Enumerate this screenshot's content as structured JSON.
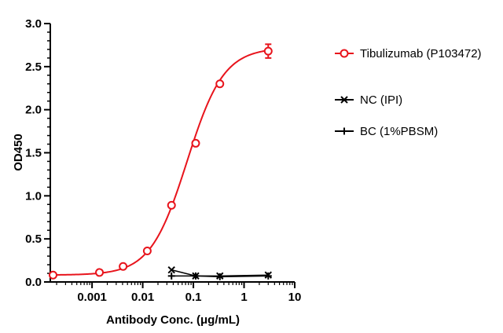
{
  "chart_data": {
    "type": "scatter",
    "xlabel": "Antibody Conc. (μg/mL)",
    "ylabel": "OD450",
    "xscale": "log",
    "xlim": [
      0.00015,
      10
    ],
    "ylim": [
      0,
      3.0
    ],
    "x_ticks": [
      {
        "value": 0.001,
        "label": "0.001"
      },
      {
        "value": 0.01,
        "label": "0.01"
      },
      {
        "value": 0.1,
        "label": "0.1"
      },
      {
        "value": 1,
        "label": "1"
      },
      {
        "value": 10,
        "label": "10"
      }
    ],
    "y_ticks": [
      {
        "value": 0,
        "label": "0.0"
      },
      {
        "value": 0.5,
        "label": "0.5"
      },
      {
        "value": 1.0,
        "label": "1.0"
      },
      {
        "value": 1.5,
        "label": "1.5"
      },
      {
        "value": 2.0,
        "label": "2.0"
      },
      {
        "value": 2.5,
        "label": "2.5"
      },
      {
        "value": 3.0,
        "label": "3.0"
      }
    ],
    "legend_position": "right",
    "series": [
      {
        "name": "Tibulizumab (P103472)",
        "marker": "circle",
        "color": "#e8141c",
        "fit": "4PL",
        "x": [
          0.00017,
          0.0014,
          0.0041,
          0.0123,
          0.037,
          0.111,
          0.333,
          3.0
        ],
        "y": [
          0.08,
          0.11,
          0.18,
          0.36,
          0.89,
          1.61,
          2.3,
          2.68
        ],
        "error": [
          0,
          0,
          0,
          0,
          0,
          0,
          0,
          0.08
        ]
      },
      {
        "name": "NC (IPI)",
        "marker": "x",
        "color": "#000000",
        "x": [
          0.037,
          0.111,
          0.333,
          3.0
        ],
        "y": [
          0.14,
          0.07,
          0.07,
          0.08
        ]
      },
      {
        "name": "BC (1%PBSM)",
        "marker": "plus",
        "color": "#000000",
        "x": [
          0.037,
          0.111,
          0.333,
          3.0
        ],
        "y": [
          0.07,
          0.07,
          0.06,
          0.07
        ]
      }
    ]
  }
}
